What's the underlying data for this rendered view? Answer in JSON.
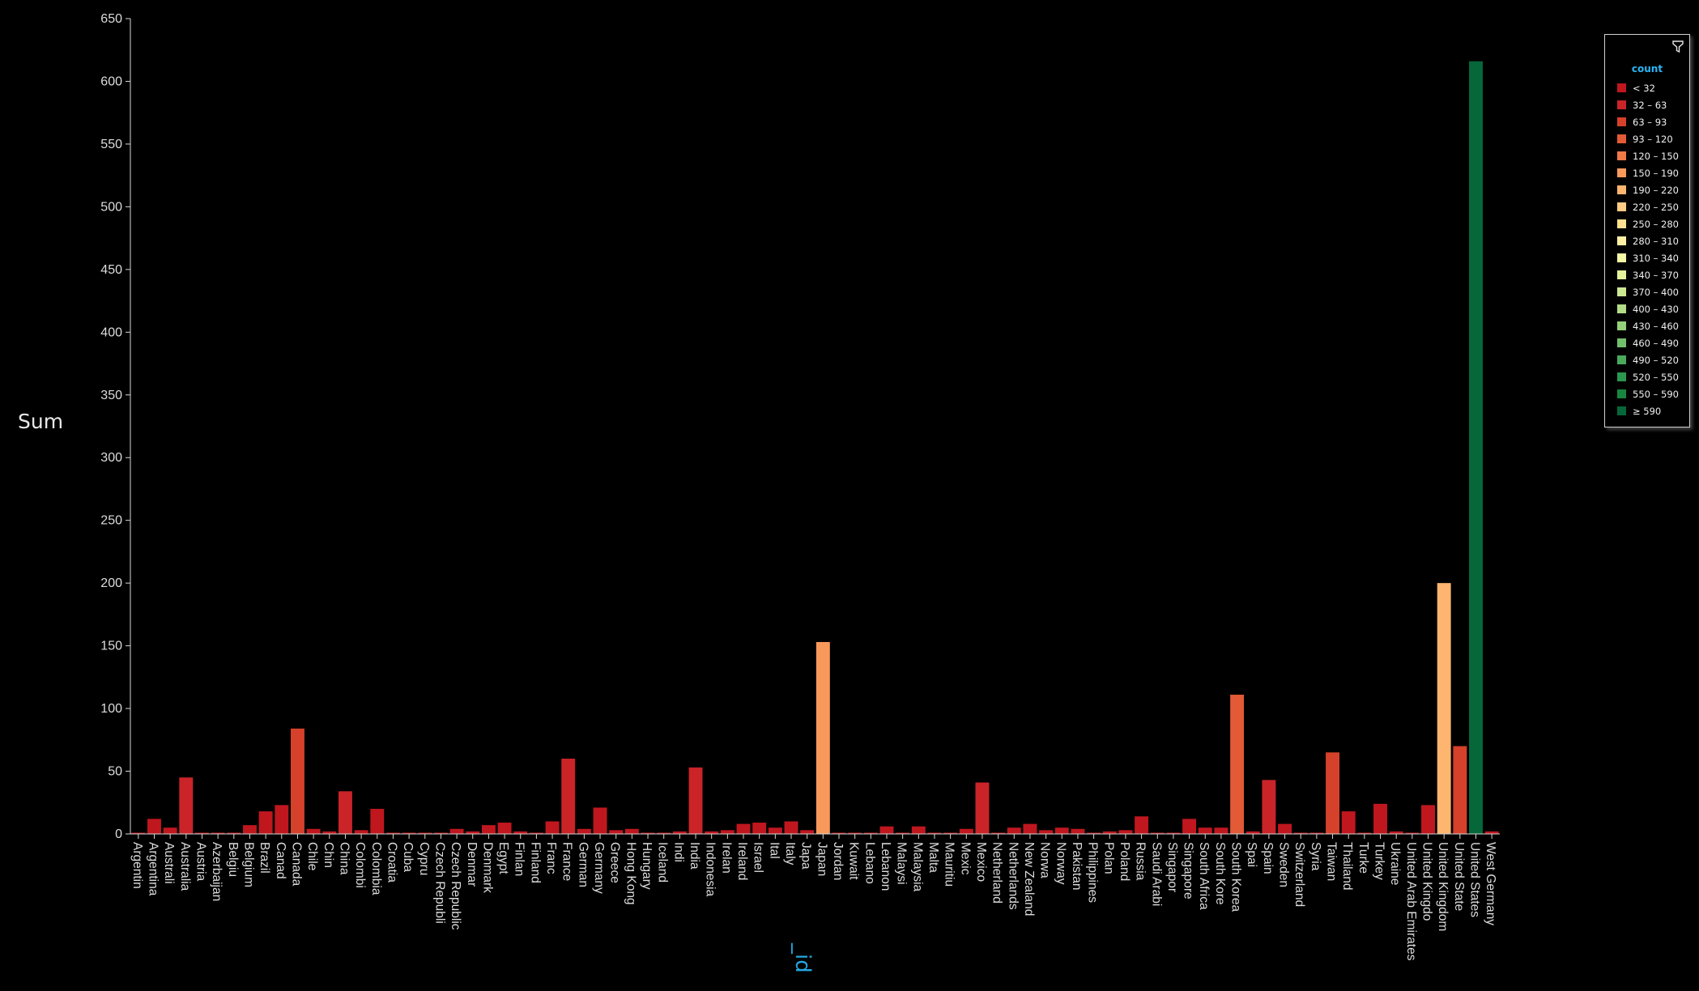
{
  "chart_data": {
    "type": "bar",
    "xlabel": "_id",
    "ylabel": "Sum",
    "ylim": [
      0,
      650
    ],
    "yticks": [
      "0",
      "50",
      "100",
      "150",
      "200",
      "250",
      "300",
      "350",
      "400",
      "450",
      "500",
      "550",
      "600",
      "650"
    ],
    "legend_placement": "top-right",
    "legend_title": "count",
    "categories": [
      "Argentin",
      "Argentina",
      "Australi",
      "Australia",
      "Austria",
      "Azerbaijan",
      "Belgiu",
      "Belgium",
      "Brazil",
      "Canad",
      "Canada",
      "Chile",
      "Chin",
      "China",
      "Colombi",
      "Colombia",
      "Croatia",
      "Cuba",
      "Cypru",
      "Czech Republi",
      "Czech Republic",
      "Denmar",
      "Denmark",
      "Egypt",
      "Finlan",
      "Finland",
      "Franc",
      "France",
      "German",
      "Germany",
      "Greece",
      "Hong Kong",
      "Hungary",
      "Iceland",
      "Indi",
      "India",
      "Indonesia",
      "Irelan",
      "Ireland",
      "Israel",
      "Ital",
      "Italy",
      "Japa",
      "Japan",
      "Jordan",
      "Kuwait",
      "Lebano",
      "Lebanon",
      "Malaysi",
      "Malaysia",
      "Malta",
      "Mauritiu",
      "Mexic",
      "Mexico",
      "Netherland",
      "Netherlands",
      "New Zealand",
      "Norwa",
      "Norway",
      "Pakistan",
      "Philippines",
      "Polan",
      "Poland",
      "Russia",
      "Saudi Arabi",
      "Singapor",
      "Singapore",
      "South Africa",
      "South Kore",
      "South Korea",
      "Spai",
      "Spain",
      "Sweden",
      "Switzerland",
      "Syria",
      "Taiwan",
      "Thailand",
      "Turke",
      "Turkey",
      "Ukraine",
      "United Arab Emirates",
      "United Kingdo",
      "United Kingdom",
      "United State",
      "United States",
      "West Germany"
    ],
    "values": [
      1,
      12,
      5,
      45,
      1,
      1,
      1,
      7,
      18,
      23,
      84,
      4,
      2,
      34,
      3,
      20,
      1,
      1,
      1,
      1,
      4,
      2,
      7,
      9,
      2,
      1,
      10,
      60,
      4,
      21,
      3,
      4,
      1,
      1,
      2,
      53,
      2,
      3,
      8,
      9,
      5,
      10,
      3,
      153,
      1,
      1,
      1,
      6,
      1,
      6,
      1,
      1,
      4,
      41,
      1,
      5,
      8,
      3,
      5,
      4,
      1,
      2,
      3,
      14,
      1,
      1,
      12,
      5,
      5,
      111,
      2,
      43,
      8,
      1,
      1,
      65,
      18,
      1,
      24,
      2,
      1,
      23,
      200,
      70,
      616,
      2
    ],
    "colors": [
      "#c0171f",
      "#ca2429",
      "#d6412b",
      "#e35a36",
      "#f07a48",
      "#f8995b",
      "#fdb56f",
      "#fecc84",
      "#fee08f",
      "#fff0a4",
      "#f5f8a4",
      "#e4f39c",
      "#cde892",
      "#b2dd86",
      "#94d07a",
      "#73bf6d",
      "#4aa95b",
      "#2c974e",
      "#17873f",
      "#06673a"
    ],
    "legend_ranges": [
      "< 32",
      "32 – 63",
      "63 – 93",
      "93 – 120",
      "120 – 150",
      "150 – 190",
      "190 – 220",
      "220 – 250",
      "250 – 280",
      "280 – 310",
      "310 – 340",
      "340 – 370",
      "370 – 400",
      "400 – 430",
      "430 – 460",
      "460 – 490",
      "490 – 520",
      "520 – 550",
      "550 – 590",
      "≥ 590"
    ],
    "legend_lower_bounds": [
      0,
      32,
      63,
      93,
      120,
      150,
      190,
      220,
      250,
      280,
      310,
      340,
      370,
      400,
      430,
      460,
      490,
      520,
      550,
      590
    ]
  },
  "icons": {
    "legend_filter": "funnel-icon"
  }
}
